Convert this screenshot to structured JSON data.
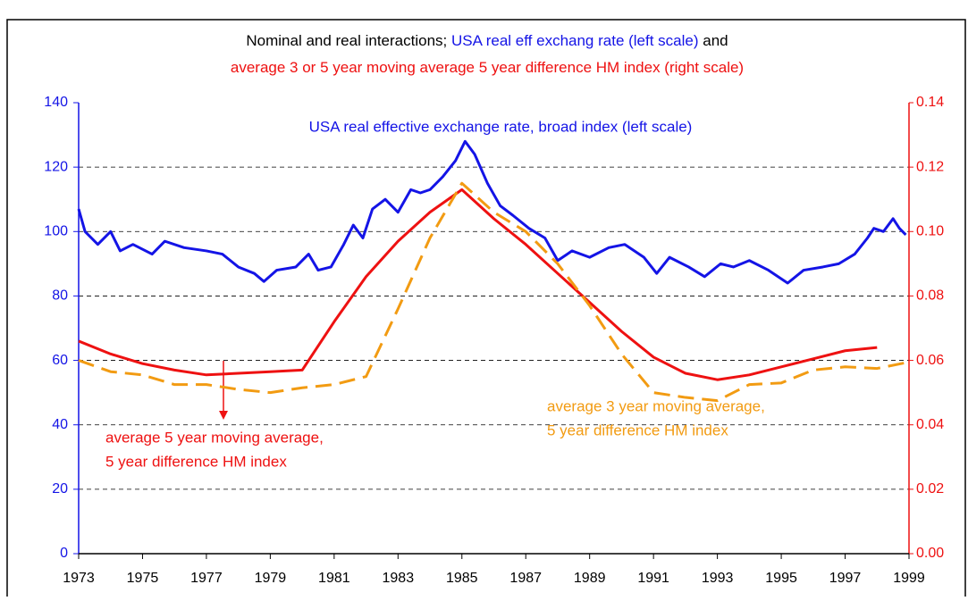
{
  "chart_data": {
    "type": "line",
    "title_lines": [
      [
        {
          "text": "Nominal and real interactions; ",
          "color": "#000000"
        },
        {
          "text": "USA real eff exchang rate (left scale)",
          "color": "#1414e6"
        },
        {
          "text": " and",
          "color": "#000000"
        }
      ],
      [
        {
          "text": "average 3 or 5 year moving average 5 year difference HM index (right scale)",
          "color": "#ee1111"
        }
      ]
    ],
    "annotations": [
      {
        "lines": [
          "USA real effective exchange rate, broad index (left scale)"
        ],
        "color": "#1414e6"
      },
      {
        "lines": [
          "average 5 year moving average,",
          "5 year difference HM index"
        ],
        "color": "#ee1111"
      },
      {
        "lines": [
          "average 3 year moving average,",
          "5 year difference HM index"
        ],
        "color": "#f29b12"
      }
    ],
    "xlim": [
      1973,
      1999
    ],
    "xticks": [
      1973,
      1975,
      1977,
      1979,
      1981,
      1983,
      1985,
      1987,
      1989,
      1991,
      1993,
      1995,
      1997,
      1999
    ],
    "ylim": [
      0,
      140
    ],
    "yticks": [
      0,
      20,
      40,
      60,
      80,
      100,
      120,
      140
    ],
    "y2lim": [
      0,
      0.14
    ],
    "y2ticks": [
      {
        "value": 0,
        "label": "0.00"
      },
      0.02,
      0.04,
      0.06,
      0.08,
      {
        "value": 0.1,
        "label": "0.10"
      },
      0.12,
      0.14
    ],
    "y_color": "#1414e6",
    "y2_color": "#ee1111",
    "grid": true,
    "series": [
      {
        "name": "USA real effective exchange rate, broad index",
        "color": "#1414e6",
        "axis": "y",
        "dashed": false,
        "x": [
          1973.0,
          1973.2,
          1973.6,
          1974.0,
          1974.3,
          1974.7,
          1975.3,
          1975.7,
          1976.3,
          1977.0,
          1977.5,
          1978.0,
          1978.5,
          1978.8,
          1979.2,
          1979.8,
          1980.2,
          1980.5,
          1980.9,
          1981.3,
          1981.6,
          1981.9,
          1982.2,
          1982.6,
          1983.0,
          1983.4,
          1983.7,
          1984.0,
          1984.4,
          1984.8,
          1985.1,
          1985.4,
          1985.8,
          1986.2,
          1986.6,
          1987.1,
          1987.6,
          1988.0,
          1988.45,
          1989.0,
          1989.6,
          1990.1,
          1990.7,
          1991.1,
          1991.5,
          1992.1,
          1992.6,
          1993.1,
          1993.5,
          1994.0,
          1994.6,
          1995.2,
          1995.7,
          1996.3,
          1996.8,
          1997.3,
          1997.7,
          1997.9,
          1998.2,
          1998.5,
          1998.7,
          1998.9
        ],
        "values": [
          107,
          100,
          96,
          100,
          94,
          96,
          93,
          97,
          95,
          94,
          93,
          89,
          87,
          84.5,
          88,
          89,
          93,
          88,
          89,
          96,
          102,
          98,
          107,
          110,
          106,
          113,
          112,
          113,
          117,
          122,
          128,
          124,
          115,
          108,
          105,
          101,
          98,
          91,
          94,
          92,
          95,
          96,
          92,
          87,
          92,
          89,
          86,
          90,
          89,
          91,
          88,
          84,
          88,
          89,
          90,
          93,
          98,
          101,
          100,
          104,
          101,
          99
        ]
      },
      {
        "name": "average 5 year moving average, 5 year difference HM index",
        "color": "#ee1111",
        "axis": "y2",
        "dashed": false,
        "x": [
          1973,
          1974,
          1975,
          1976,
          1977,
          1978,
          1979,
          1980,
          1981,
          1982,
          1983,
          1984,
          1985,
          1986,
          1987,
          1988,
          1989,
          1990,
          1991,
          1992,
          1993,
          1994,
          1995,
          1996,
          1997,
          1998
        ],
        "values": [
          0.066,
          0.062,
          0.059,
          0.057,
          0.0555,
          0.056,
          0.0565,
          0.057,
          0.072,
          0.086,
          0.097,
          0.106,
          0.113,
          0.104,
          0.096,
          0.087,
          0.078,
          0.069,
          0.061,
          0.056,
          0.054,
          0.0555,
          0.058,
          0.0605,
          0.063,
          0.064
        ]
      },
      {
        "name": "average 3 year moving average, 5 year difference HM index",
        "color": "#f29b12",
        "axis": "y2",
        "dashed": true,
        "x": [
          1973,
          1974,
          1975,
          1976,
          1977,
          1978,
          1979,
          1980,
          1981,
          1982,
          1983,
          1984,
          1985,
          1986,
          1987,
          1988,
          1989,
          1990,
          1991,
          1992,
          1993,
          1994,
          1995,
          1996,
          1997,
          1998,
          1999
        ],
        "values": [
          0.06,
          0.0565,
          0.0555,
          0.0525,
          0.0525,
          0.051,
          0.05,
          0.0515,
          0.0525,
          0.055,
          0.076,
          0.098,
          0.115,
          0.106,
          0.1,
          0.09,
          0.077,
          0.062,
          0.05,
          0.0485,
          0.0475,
          0.0525,
          0.053,
          0.057,
          0.058,
          0.0575,
          0.0595
        ]
      }
    ]
  }
}
